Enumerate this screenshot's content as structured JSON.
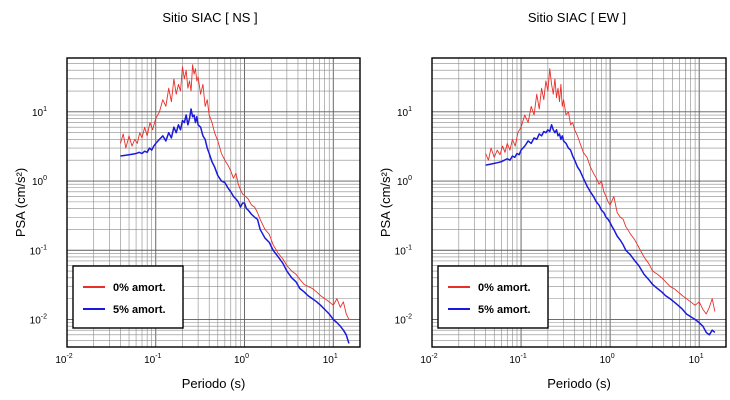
{
  "chart_data": [
    {
      "type": "line",
      "title": "Sitio SIAC [ NS ]",
      "xlabel": "Periodo (s)",
      "ylabel": "PSA (cm/s²)",
      "xscale": "log",
      "yscale": "log",
      "xlim": [
        0.01,
        20
      ],
      "ylim": [
        0.004,
        60
      ],
      "grid": true,
      "legend_position": "bottom-left",
      "x_ticks": [
        {
          "value": 0.01,
          "base": "10",
          "exp": "-2"
        },
        {
          "value": 0.1,
          "base": "10",
          "exp": "-1"
        },
        {
          "value": 1,
          "base": "10",
          "exp": "0"
        },
        {
          "value": 10,
          "base": "10",
          "exp": "1"
        }
      ],
      "y_ticks": [
        {
          "value": 0.01,
          "base": "10",
          "exp": "-2"
        },
        {
          "value": 0.1,
          "base": "10",
          "exp": "-1"
        },
        {
          "value": 1,
          "base": "10",
          "exp": "0"
        },
        {
          "value": 10,
          "base": "10",
          "exp": "1"
        }
      ],
      "series": [
        {
          "name": "0% amort.",
          "color": "#e8302a",
          "x": [
            0.04,
            0.043,
            0.046,
            0.05,
            0.054,
            0.058,
            0.062,
            0.066,
            0.07,
            0.075,
            0.08,
            0.086,
            0.092,
            0.1,
            0.11,
            0.12,
            0.13,
            0.14,
            0.15,
            0.16,
            0.17,
            0.18,
            0.19,
            0.2,
            0.21,
            0.22,
            0.23,
            0.24,
            0.25,
            0.26,
            0.27,
            0.28,
            0.29,
            0.3,
            0.32,
            0.34,
            0.36,
            0.38,
            0.4,
            0.43,
            0.46,
            0.5,
            0.55,
            0.6,
            0.65,
            0.7,
            0.75,
            0.8,
            0.85,
            0.9,
            0.95,
            1.0,
            1.1,
            1.2,
            1.3,
            1.4,
            1.5,
            1.7,
            1.9,
            2.1,
            2.4,
            2.7,
            3.0,
            3.4,
            3.8,
            4.2,
            4.7,
            5.2,
            5.8,
            6.5,
            7.2,
            8.0,
            9.0,
            10.0,
            11.0,
            12.0,
            13.0,
            14.0,
            15.0
          ],
          "y": [
            3.5,
            4.8,
            3.0,
            4.5,
            3.2,
            4.0,
            3.5,
            5.0,
            4.2,
            6.0,
            4.5,
            7.0,
            5.5,
            8.0,
            10.0,
            15.0,
            12.0,
            22.0,
            14.0,
            30.0,
            18.0,
            25.0,
            20.0,
            45.0,
            30.0,
            40.0,
            22.0,
            28.0,
            20.0,
            48.0,
            35.0,
            42.0,
            28.0,
            32.0,
            18.0,
            25.0,
            12.0,
            15.0,
            9.0,
            7.0,
            5.0,
            3.8,
            2.5,
            2.0,
            1.7,
            1.4,
            1.1,
            1.3,
            0.9,
            0.75,
            0.65,
            0.62,
            0.55,
            0.45,
            0.42,
            0.35,
            0.28,
            0.2,
            0.17,
            0.12,
            0.09,
            0.075,
            0.06,
            0.05,
            0.045,
            0.038,
            0.032,
            0.03,
            0.028,
            0.025,
            0.022,
            0.02,
            0.018,
            0.016,
            0.02,
            0.015,
            0.018,
            0.012,
            0.01
          ]
        },
        {
          "name": "5% amort.",
          "color": "#1a1adc",
          "x": [
            0.04,
            0.045,
            0.05,
            0.055,
            0.06,
            0.065,
            0.07,
            0.075,
            0.08,
            0.085,
            0.09,
            0.095,
            0.1,
            0.11,
            0.12,
            0.13,
            0.14,
            0.15,
            0.16,
            0.17,
            0.18,
            0.19,
            0.2,
            0.21,
            0.22,
            0.23,
            0.24,
            0.25,
            0.26,
            0.27,
            0.28,
            0.29,
            0.3,
            0.32,
            0.34,
            0.36,
            0.38,
            0.4,
            0.43,
            0.46,
            0.5,
            0.55,
            0.6,
            0.65,
            0.7,
            0.75,
            0.8,
            0.85,
            0.9,
            0.95,
            1.0,
            1.05,
            1.1,
            1.2,
            1.3,
            1.4,
            1.5,
            1.7,
            1.9,
            2.1,
            2.4,
            2.7,
            3.0,
            3.4,
            3.8,
            4.2,
            4.7,
            5.2,
            5.8,
            6.5,
            7.2,
            8.0,
            9.0,
            10.0,
            11.0,
            12.0,
            13.0,
            14.0,
            15.0
          ],
          "y": [
            2.3,
            2.35,
            2.4,
            2.45,
            2.5,
            2.6,
            2.5,
            2.7,
            2.6,
            3.0,
            2.8,
            3.2,
            3.5,
            4.0,
            4.5,
            3.8,
            5.0,
            4.2,
            6.0,
            5.0,
            6.5,
            5.5,
            7.5,
            7.0,
            9.0,
            6.5,
            8.0,
            11.0,
            8.5,
            9.0,
            7.0,
            8.5,
            6.5,
            6.0,
            4.5,
            4.0,
            3.0,
            2.5,
            1.9,
            1.6,
            1.2,
            1.0,
            0.95,
            0.8,
            0.7,
            0.6,
            0.55,
            0.5,
            0.42,
            0.48,
            0.48,
            0.4,
            0.38,
            0.33,
            0.3,
            0.28,
            0.2,
            0.15,
            0.13,
            0.1,
            0.08,
            0.065,
            0.05,
            0.04,
            0.035,
            0.028,
            0.025,
            0.022,
            0.02,
            0.018,
            0.016,
            0.014,
            0.012,
            0.01,
            0.009,
            0.008,
            0.007,
            0.006,
            0.0045
          ]
        }
      ]
    },
    {
      "type": "line",
      "title": "Sitio SIAC [ EW ]",
      "xlabel": "Periodo (s)",
      "ylabel": "PSA (cm/s²)",
      "xscale": "log",
      "yscale": "log",
      "xlim": [
        0.01,
        20
      ],
      "ylim": [
        0.004,
        60
      ],
      "grid": true,
      "legend_position": "bottom-left",
      "x_ticks": [
        {
          "value": 0.01,
          "base": "10",
          "exp": "-2"
        },
        {
          "value": 0.1,
          "base": "10",
          "exp": "-1"
        },
        {
          "value": 1,
          "base": "10",
          "exp": "0"
        },
        {
          "value": 10,
          "base": "10",
          "exp": "1"
        }
      ],
      "y_ticks": [
        {
          "value": 0.01,
          "base": "10",
          "exp": "-2"
        },
        {
          "value": 0.1,
          "base": "10",
          "exp": "-1"
        },
        {
          "value": 1,
          "base": "10",
          "exp": "0"
        },
        {
          "value": 10,
          "base": "10",
          "exp": "1"
        }
      ],
      "series": [
        {
          "name": "0% amort.",
          "color": "#e8302a",
          "x": [
            0.04,
            0.043,
            0.046,
            0.05,
            0.054,
            0.058,
            0.062,
            0.066,
            0.07,
            0.075,
            0.08,
            0.086,
            0.092,
            0.1,
            0.11,
            0.12,
            0.13,
            0.14,
            0.15,
            0.16,
            0.17,
            0.18,
            0.19,
            0.2,
            0.21,
            0.22,
            0.23,
            0.24,
            0.25,
            0.26,
            0.27,
            0.28,
            0.29,
            0.3,
            0.32,
            0.34,
            0.36,
            0.38,
            0.4,
            0.43,
            0.46,
            0.5,
            0.55,
            0.6,
            0.65,
            0.7,
            0.75,
            0.8,
            0.85,
            0.9,
            0.95,
            1.0,
            1.1,
            1.2,
            1.3,
            1.4,
            1.5,
            1.7,
            1.9,
            2.1,
            2.4,
            2.7,
            3.0,
            3.4,
            3.8,
            4.2,
            4.7,
            5.2,
            5.8,
            6.5,
            7.2,
            8.0,
            9.0,
            10.0,
            11.0,
            12.0,
            13.0,
            14.0,
            15.0
          ],
          "y": [
            2.5,
            2.0,
            3.0,
            2.2,
            2.8,
            2.4,
            3.2,
            2.6,
            3.5,
            2.8,
            4.0,
            3.2,
            5.0,
            6.0,
            9.0,
            7.0,
            12.0,
            9.0,
            18.0,
            11.0,
            22.0,
            15.0,
            28.0,
            20.0,
            42.0,
            25.0,
            18.0,
            30.0,
            16.0,
            22.0,
            14.0,
            25.0,
            12.0,
            15.0,
            9.0,
            10.0,
            6.5,
            7.0,
            5.5,
            4.5,
            3.5,
            2.6,
            2.2,
            1.6,
            1.3,
            1.1,
            0.9,
            1.0,
            0.7,
            0.6,
            0.5,
            0.45,
            0.6,
            0.35,
            0.3,
            0.28,
            0.22,
            0.17,
            0.14,
            0.11,
            0.08,
            0.065,
            0.05,
            0.045,
            0.04,
            0.035,
            0.03,
            0.028,
            0.025,
            0.022,
            0.02,
            0.018,
            0.016,
            0.018,
            0.014,
            0.012,
            0.015,
            0.02,
            0.013
          ]
        },
        {
          "name": "5% amort.",
          "color": "#1a1adc",
          "x": [
            0.04,
            0.045,
            0.05,
            0.055,
            0.06,
            0.065,
            0.07,
            0.075,
            0.08,
            0.085,
            0.09,
            0.095,
            0.1,
            0.11,
            0.12,
            0.13,
            0.14,
            0.15,
            0.16,
            0.17,
            0.18,
            0.19,
            0.2,
            0.21,
            0.22,
            0.23,
            0.24,
            0.25,
            0.26,
            0.27,
            0.28,
            0.29,
            0.3,
            0.32,
            0.34,
            0.36,
            0.38,
            0.4,
            0.43,
            0.46,
            0.5,
            0.55,
            0.6,
            0.65,
            0.7,
            0.75,
            0.8,
            0.85,
            0.9,
            0.95,
            1.0,
            1.05,
            1.1,
            1.2,
            1.3,
            1.4,
            1.5,
            1.7,
            1.9,
            2.1,
            2.4,
            2.7,
            3.0,
            3.4,
            3.8,
            4.2,
            4.7,
            5.2,
            5.8,
            6.5,
            7.2,
            8.0,
            9.0,
            10.0,
            11.0,
            12.0,
            13.0,
            14.0,
            15.0
          ],
          "y": [
            1.7,
            1.75,
            1.8,
            1.85,
            1.9,
            2.0,
            2.1,
            2.0,
            2.3,
            2.2,
            2.5,
            2.4,
            2.8,
            3.2,
            3.8,
            3.5,
            4.2,
            4.0,
            4.8,
            4.5,
            5.2,
            5.0,
            5.5,
            5.2,
            6.5,
            5.5,
            5.0,
            5.5,
            4.5,
            4.8,
            4.0,
            4.5,
            3.8,
            3.5,
            3.0,
            2.8,
            2.3,
            2.0,
            1.6,
            1.4,
            1.1,
            0.85,
            0.7,
            0.6,
            0.5,
            0.45,
            0.38,
            0.35,
            0.3,
            0.28,
            0.25,
            0.22,
            0.2,
            0.16,
            0.14,
            0.12,
            0.1,
            0.085,
            0.07,
            0.06,
            0.045,
            0.038,
            0.032,
            0.028,
            0.025,
            0.022,
            0.02,
            0.018,
            0.016,
            0.014,
            0.012,
            0.011,
            0.01,
            0.009,
            0.008,
            0.0065,
            0.006,
            0.007,
            0.0065
          ]
        }
      ]
    }
  ]
}
